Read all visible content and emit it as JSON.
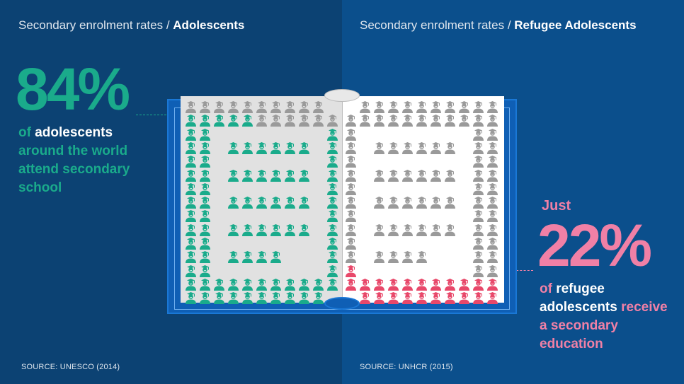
{
  "left": {
    "header_prefix": "Secondary enrolment rates / ",
    "header_bold": "Adolescents",
    "stat": "84%",
    "desc_of": "of ",
    "desc_highlight": "adolescents",
    "desc_rest_1": "around the world",
    "desc_rest_2": "attend secondary",
    "desc_rest_3": "school",
    "source": "SOURCE: UNESCO (2014)",
    "percent_value": 84
  },
  "right": {
    "header_prefix": "Secondary enrolment rates / ",
    "header_bold": "Refugee Adolescents",
    "lead": "Just",
    "stat": "22%",
    "desc_of": "of ",
    "desc_highlight_1": "refugee",
    "desc_highlight_2": "adolescents",
    "desc_rest_1": " receive",
    "desc_rest_2": "a secondary",
    "desc_rest_3": "education",
    "source": "SOURCE: UNHCR (2015)",
    "percent_value": 22
  },
  "colors": {
    "green": "#1aab8b",
    "pink_text": "#f080a6",
    "red_icon": "#e8486a",
    "gray_icon": "#9a9a9a"
  },
  "icons": {
    "student": "graduate-student-icon"
  }
}
